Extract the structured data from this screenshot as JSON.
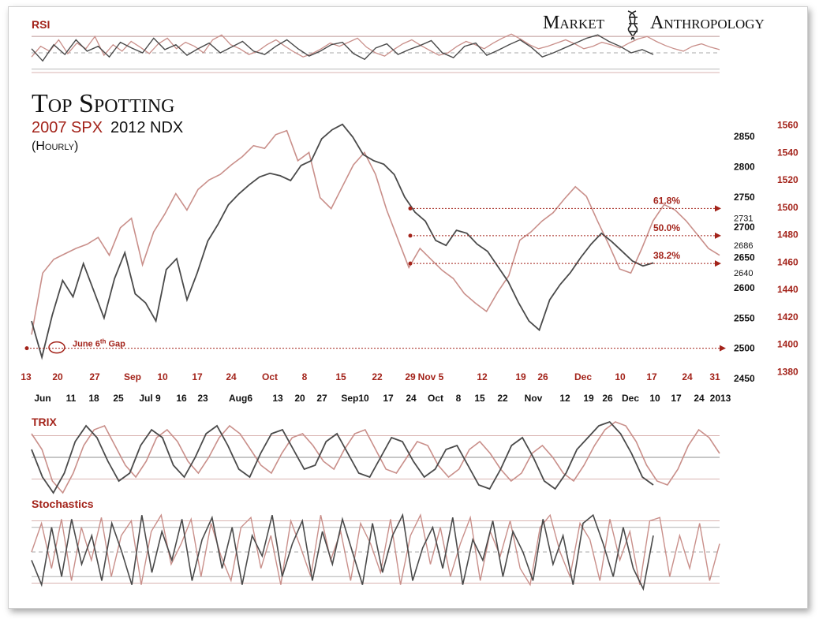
{
  "brand": {
    "left": "Market",
    "right": "Anthropology"
  },
  "title": "Top Spotting",
  "subtitle": {
    "red_part": "2007 SPX",
    "black_part": "2012 NDX",
    "interval": "(Hourly)"
  },
  "colors": {
    "spx_2007": "#c98f8a",
    "ndx_2012": "#4a4a4a",
    "accent": "#a3231a",
    "frame": "#cfcfcf"
  },
  "chart_data": [
    {
      "type": "line",
      "panel": "RSI",
      "title": "RSI",
      "series": [
        {
          "name": "",
          "color": "#c98f8a",
          "values": [
            45,
            58,
            52,
            66,
            49,
            62,
            55,
            70,
            47,
            60,
            52,
            64,
            57,
            49,
            61,
            68,
            55,
            63,
            58,
            50,
            66,
            72,
            60,
            55,
            48,
            52,
            60,
            66,
            58,
            51,
            45,
            49,
            55,
            62,
            58,
            63,
            68,
            57,
            50,
            46,
            54,
            61,
            66,
            59,
            53,
            47,
            50,
            58,
            64,
            60,
            55,
            62,
            68,
            73,
            67,
            60,
            55,
            58,
            62,
            66,
            61,
            55,
            58,
            63,
            60,
            56,
            62,
            67,
            70,
            64,
            59,
            55,
            52,
            58,
            61,
            57,
            54
          ]
        },
        {
          "name": "",
          "color": "#4a4a4a",
          "values": [
            55,
            40,
            60,
            48,
            66,
            52,
            58,
            45,
            63,
            56,
            50,
            68,
            54,
            60,
            47,
            55,
            62,
            50,
            57,
            64,
            52,
            48,
            58,
            66,
            55,
            46,
            52,
            60,
            63,
            49,
            42,
            56,
            61,
            48,
            54,
            59,
            65,
            50,
            44,
            58,
            62,
            47,
            53,
            60,
            66,
            57,
            45,
            50,
            56,
            62,
            68,
            72,
            64,
            58,
            50,
            54,
            48
          ]
        }
      ],
      "ylim": [
        20,
        80
      ]
    },
    {
      "type": "line",
      "panel": "price",
      "series": [
        {
          "name": "2007 SPX",
          "color": "#c98f8a",
          "axis": "right",
          "values": [
            1407,
            1452,
            1462,
            1466,
            1470,
            1473,
            1478,
            1465,
            1485,
            1492,
            1458,
            1482,
            1495,
            1510,
            1498,
            1513,
            1520,
            1524,
            1531,
            1537,
            1545,
            1543,
            1553,
            1556,
            1534,
            1540,
            1507,
            1499,
            1515,
            1531,
            1540,
            1524,
            1498,
            1477,
            1456,
            1470,
            1462,
            1454,
            1448,
            1437,
            1430,
            1424,
            1438,
            1450,
            1476,
            1482,
            1490,
            1496,
            1506,
            1515,
            1508,
            1490,
            1473,
            1455,
            1452,
            1470,
            1490,
            1502,
            1498,
            1490,
            1480,
            1470,
            1465
          ]
        },
        {
          "name": "2012 NDX",
          "color": "#4a4a4a",
          "axis": "left",
          "values": [
            2545,
            2485,
            2555,
            2612,
            2585,
            2640,
            2595,
            2550,
            2615,
            2658,
            2590,
            2575,
            2545,
            2630,
            2648,
            2580,
            2625,
            2677,
            2705,
            2737,
            2755,
            2770,
            2783,
            2789,
            2785,
            2777,
            2802,
            2810,
            2846,
            2861,
            2870,
            2849,
            2820,
            2810,
            2804,
            2787,
            2750,
            2725,
            2710,
            2678,
            2670,
            2695,
            2690,
            2672,
            2660,
            2635,
            2610,
            2575,
            2545,
            2530,
            2580,
            2605,
            2625,
            2650,
            2672,
            2690,
            2676,
            2660,
            2644,
            2636,
            2641
          ]
        }
      ],
      "left_axis": {
        "ticks": [
          2850,
          2800,
          2750,
          2700,
          2650,
          2600,
          2550,
          2500,
          2450
        ],
        "range": [
          2450,
          2880
        ]
      },
      "right_axis": {
        "ticks": [
          1560,
          1540,
          1520,
          1500,
          1480,
          1460,
          1440,
          1420,
          1400,
          1380
        ],
        "range": [
          1375,
          1565
        ]
      },
      "fib_levels": [
        {
          "label": "61.8%",
          "value": 2731
        },
        {
          "label": "50.0%",
          "value": 2686
        },
        {
          "label": "38.2%",
          "value": 2640
        }
      ],
      "fib_value_labels": [
        "2731",
        "2686",
        "2640"
      ],
      "gap_line": {
        "label": "June 6",
        "sup": "th",
        "suffix": " Gap",
        "value": 2500
      },
      "x_top": [
        "13",
        "20",
        "27",
        "Sep",
        "10",
        "17",
        "24",
        "Oct",
        "8",
        "15",
        "22",
        "29",
        "Nov 5",
        "12",
        "19",
        "26",
        "Dec",
        "10",
        "17",
        "24",
        "31"
      ],
      "x_bottom": [
        "Jun",
        "11",
        "18",
        "25",
        "Jul 9",
        "16",
        "23",
        "Aug6",
        "13",
        "20",
        "27",
        "Sep10",
        "17",
        "24",
        "Oct",
        "8",
        "15",
        "22",
        "Nov",
        "12",
        "19",
        "26",
        "Dec",
        "10",
        "17",
        "24",
        "2013"
      ]
    },
    {
      "type": "line",
      "panel": "TRIX",
      "title": "TRIX",
      "series": [
        {
          "name": "",
          "color": "#c98f8a",
          "values": [
            0.6,
            0.2,
            -0.6,
            -0.9,
            -0.4,
            0.3,
            0.7,
            0.8,
            0.3,
            -0.2,
            -0.5,
            -0.1,
            0.5,
            0.7,
            0.4,
            -0.1,
            -0.4,
            0.0,
            0.5,
            0.8,
            0.6,
            0.2,
            -0.2,
            -0.4,
            0.1,
            0.5,
            0.6,
            0.3,
            -0.1,
            -0.3,
            0.2,
            0.6,
            0.7,
            0.2,
            -0.3,
            -0.4,
            0.0,
            0.4,
            0.3,
            -0.2,
            -0.5,
            -0.3,
            0.2,
            0.4,
            0.1,
            -0.3,
            -0.6,
            -0.4,
            0.1,
            0.3,
            0.0,
            -0.4,
            -0.6,
            -0.2,
            0.3,
            0.7,
            0.9,
            0.8,
            0.4,
            -0.2,
            -0.6,
            -0.7,
            -0.3,
            0.3,
            0.7,
            0.5,
            0.1
          ]
        },
        {
          "name": "",
          "color": "#4a4a4a",
          "values": [
            0.2,
            -0.5,
            -0.9,
            -0.4,
            0.4,
            0.8,
            0.5,
            -0.1,
            -0.6,
            -0.4,
            0.3,
            0.7,
            0.5,
            -0.2,
            -0.5,
            0.0,
            0.6,
            0.8,
            0.3,
            -0.3,
            -0.5,
            0.1,
            0.6,
            0.7,
            0.2,
            -0.3,
            -0.2,
            0.4,
            0.6,
            0.1,
            -0.4,
            -0.5,
            0.0,
            0.5,
            0.4,
            -0.1,
            -0.5,
            -0.3,
            0.2,
            0.3,
            -0.2,
            -0.7,
            -0.8,
            -0.3,
            0.3,
            0.5,
            0.0,
            -0.6,
            -0.8,
            -0.4,
            0.2,
            0.5,
            0.8,
            0.9,
            0.6,
            0.1,
            -0.5,
            -0.7
          ]
        }
      ],
      "ylim": [
        -1.0,
        1.0
      ]
    },
    {
      "type": "line",
      "panel": "Stochastics",
      "title": "Stochastics",
      "series": [
        {
          "name": "",
          "color": "#c98f8a",
          "values": [
            50,
            85,
            30,
            90,
            15,
            80,
            40,
            92,
            20,
            70,
            88,
            10,
            75,
            95,
            35,
            60,
            90,
            20,
            85,
            45,
            15,
            80,
            92,
            30,
            70,
            10,
            88,
            55,
            20,
            95,
            40,
            75,
            15,
            85,
            60,
            25,
            90,
            10,
            70,
            95,
            35,
            80,
            20,
            60,
            92,
            15,
            75,
            45,
            88,
            30,
            10,
            80,
            95,
            50,
            20,
            85,
            65,
            15,
            90,
            40,
            75,
            10,
            88,
            92,
            20,
            70,
            30,
            85,
            15,
            60
          ]
        },
        {
          "name": "",
          "color": "#4a4a4a",
          "values": [
            40,
            10,
            80,
            20,
            90,
            35,
            70,
            15,
            85,
            50,
            10,
            95,
            25,
            75,
            40,
            90,
            15,
            65,
            92,
            30,
            80,
            10,
            70,
            45,
            95,
            20,
            60,
            88,
            15,
            75,
            35,
            90,
            50,
            10,
            85,
            25,
            70,
            95,
            15,
            55,
            80,
            30,
            92,
            10,
            65,
            40,
            88,
            20,
            75,
            50,
            15,
            90,
            35,
            70,
            10,
            85,
            95,
            60,
            20,
            80,
            30,
            5,
            70
          ]
        }
      ],
      "ylim": [
        0,
        100
      ]
    }
  ]
}
